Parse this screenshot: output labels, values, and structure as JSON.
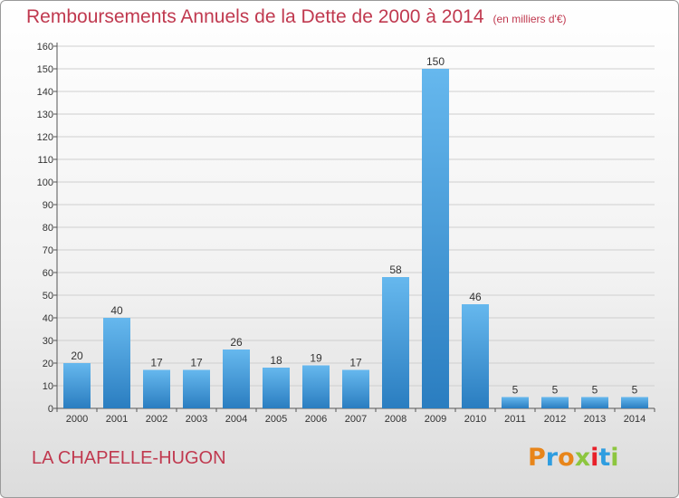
{
  "header": {
    "title": "Remboursements Annuels de la Dette de 2000 à 2014",
    "subtitle": "(en milliers d'€)"
  },
  "footer": {
    "commune": "LA CHAPELLE-HUGON",
    "logo_text": "Proxiti"
  },
  "colors": {
    "title": "#c0394f",
    "bar_light": "#66b8ee",
    "bar_dark": "#2a7dc0",
    "grid": "#cfcfcf",
    "logo_letters": [
      "#e8851a",
      "#2f9de0",
      "#e8851a",
      "#8dc63f",
      "#e8202a",
      "#2f9de0",
      "#8dc63f"
    ]
  },
  "chart_data": {
    "type": "bar",
    "categories": [
      "2000",
      "2001",
      "2002",
      "2003",
      "2004",
      "2005",
      "2006",
      "2007",
      "2008",
      "2009",
      "2010",
      "2011",
      "2012",
      "2013",
      "2014"
    ],
    "values": [
      20,
      40,
      17,
      17,
      26,
      18,
      19,
      17,
      58,
      150,
      46,
      5,
      5,
      5,
      5
    ],
    "title": "Remboursements Annuels de la Dette de 2000 à 2014",
    "subtitle": "(en milliers d'€)",
    "xlabel": "",
    "ylabel": "",
    "ylim": [
      0,
      160
    ],
    "yticks": [
      0,
      10,
      20,
      30,
      40,
      50,
      60,
      70,
      80,
      90,
      100,
      110,
      120,
      130,
      140,
      150,
      160
    ],
    "grid": true,
    "legend": "none"
  }
}
